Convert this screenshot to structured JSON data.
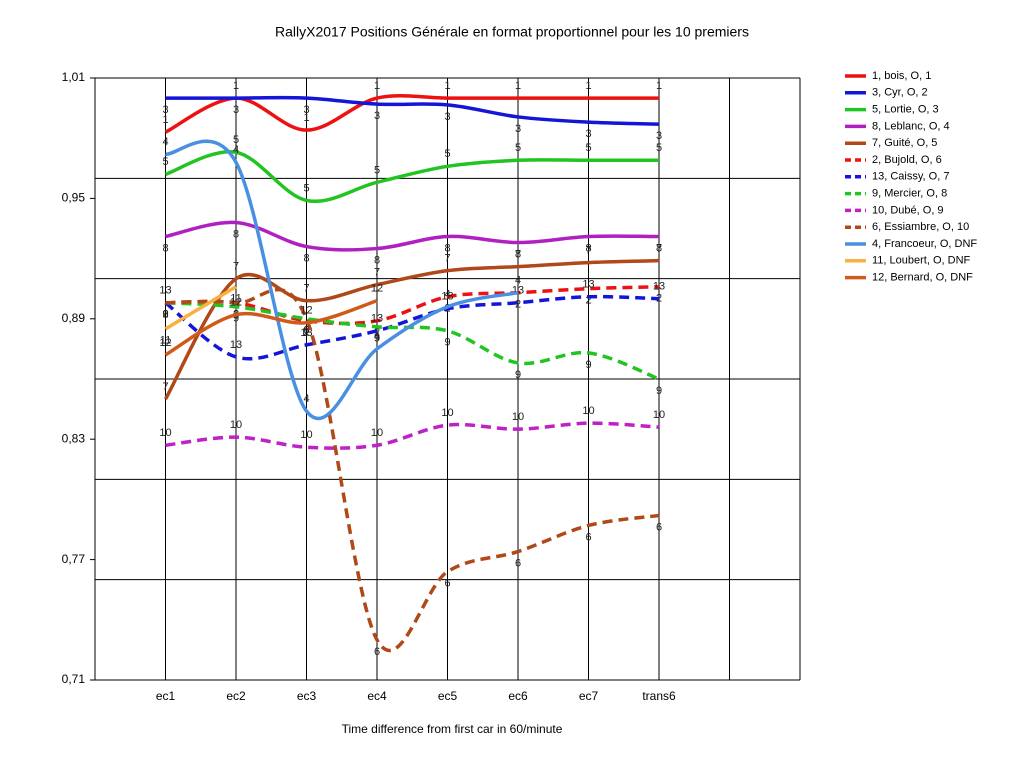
{
  "chart_data": {
    "type": "line",
    "title": "RallyX2017  Positions Générale en format proportionnel pour les 10 premiers",
    "x_label": "Time difference from first car in 60/minute",
    "categories": [
      "ec1",
      "ec2",
      "ec3",
      "ec4",
      "ec5",
      "ec6",
      "ec7",
      "trans6"
    ],
    "ylim": [
      0.71,
      1.01
    ],
    "yticks": [
      {
        "value": 1.01,
        "label": "1,01"
      },
      {
        "value": 0.95,
        "label": "0,95"
      },
      {
        "value": 0.89,
        "label": "0,89"
      },
      {
        "value": 0.83,
        "label": "0,83"
      },
      {
        "value": 0.77,
        "label": "0,77"
      },
      {
        "value": 0.71,
        "label": "0,71"
      }
    ],
    "ygrid": [
      1.01,
      0.96,
      0.91,
      0.86,
      0.81,
      0.76,
      0.71
    ],
    "smooth": true,
    "series": [
      {
        "name": "1, bois, O, 1",
        "point_label": "1",
        "color": "#ee1111",
        "dashed": false,
        "values": [
          0.983,
          1.0,
          0.984,
          1.0,
          1.0,
          1.0,
          1.0,
          1.0
        ]
      },
      {
        "name": "3, Cyr, O, 2",
        "point_label": "3",
        "color": "#1515d8",
        "dashed": false,
        "values": [
          1.0,
          1.0,
          1.0,
          0.997,
          0.9966,
          0.9906,
          0.988,
          0.987
        ]
      },
      {
        "name": "5, Lortie, O, 3",
        "point_label": "5",
        "color": "#22c422",
        "dashed": false,
        "values": [
          0.962,
          0.973,
          0.949,
          0.958,
          0.966,
          0.969,
          0.969,
          0.969
        ]
      },
      {
        "name": "8, Leblanc, O, 4",
        "point_label": "8",
        "color": "#b020c0",
        "dashed": false,
        "values": [
          0.931,
          0.938,
          0.926,
          0.925,
          0.931,
          0.928,
          0.931,
          0.931
        ]
      },
      {
        "name": "7, Guité, O, 5",
        "point_label": "7",
        "color": "#b04818",
        "dashed": false,
        "values": [
          0.85,
          0.91,
          0.899,
          0.907,
          0.914,
          0.916,
          0.918,
          0.919
        ]
      },
      {
        "name": "2, Bujold, O, 6",
        "point_label": "2",
        "color": "#ee1111",
        "dashed": true,
        "values": [
          0.898,
          0.898,
          0.889,
          0.889,
          0.901,
          0.903,
          0.905,
          0.906
        ]
      },
      {
        "name": "13, Caissy, O, 7",
        "point_label": "13",
        "color": "#1515d8",
        "dashed": true,
        "values": [
          0.898,
          0.871,
          0.877,
          0.884,
          0.895,
          0.898,
          0.901,
          0.9
        ]
      },
      {
        "name": "9, Mercier, O, 8",
        "point_label": "9",
        "color": "#22c422",
        "dashed": true,
        "values": [
          0.898,
          0.896,
          0.89,
          0.886,
          0.884,
          0.868,
          0.873,
          0.86
        ]
      },
      {
        "name": "10, Dubé, O, 9",
        "point_label": "10",
        "color": "#c020c8",
        "dashed": true,
        "values": [
          0.827,
          0.831,
          0.826,
          0.827,
          0.837,
          0.835,
          0.838,
          0.836
        ]
      },
      {
        "name": "6, Essiambre, O, 10",
        "point_label": "6",
        "color": "#b04818",
        "dashed": true,
        "values": [
          0.898,
          0.898,
          0.89,
          0.73,
          0.764,
          0.774,
          0.787,
          0.792
        ]
      },
      {
        "name": "4, Francoeur, O, DNF",
        "point_label": "4",
        "color": "#4a90e2",
        "dashed": false,
        "values": [
          0.972,
          0.968,
          0.844,
          0.875,
          0.896,
          0.903,
          null,
          null
        ]
      },
      {
        "name": "11, Loubert, O, DNF",
        "point_label": "11",
        "color": "#f8b040",
        "dashed": false,
        "values": [
          0.885,
          0.906,
          null,
          null,
          null,
          null,
          null,
          null
        ]
      },
      {
        "name": "12, Bernard, O, DNF",
        "point_label": "12",
        "color": "#d05a18",
        "dashed": false,
        "values": [
          0.872,
          0.892,
          0.888,
          0.899,
          null,
          null,
          null,
          null
        ]
      }
    ]
  }
}
